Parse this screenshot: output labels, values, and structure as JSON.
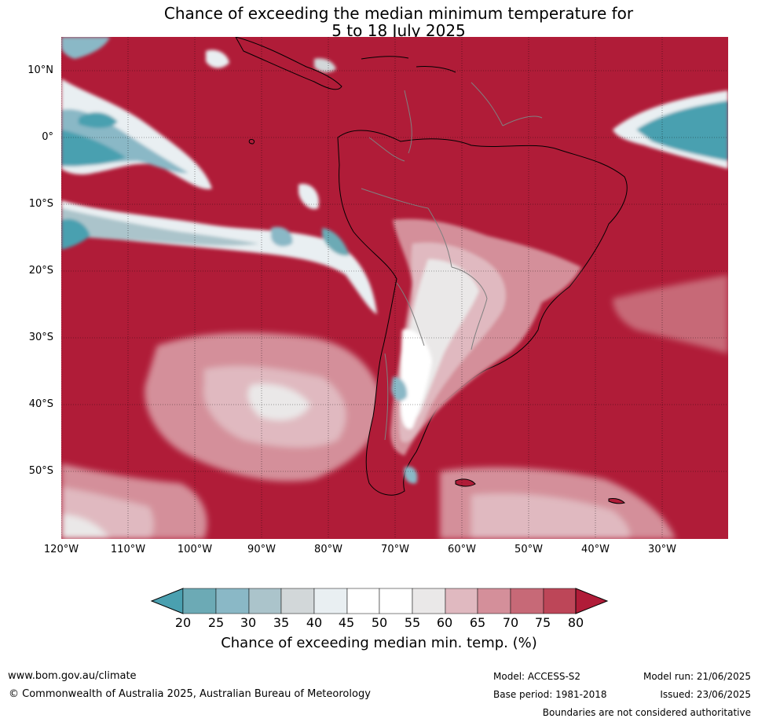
{
  "title_line1": "Chance of exceeding the median minimum temperature for",
  "title_line2": "5 to 18 July 2025",
  "map": {
    "lat_labels": [
      "10°N",
      "0°",
      "10°S",
      "20°S",
      "30°S",
      "40°S",
      "50°S"
    ],
    "lon_labels": [
      "120°W",
      "110°W",
      "100°W",
      "90°W",
      "80°W",
      "70°W",
      "60°W",
      "50°W",
      "40°W",
      "30°W"
    ],
    "region": "South America",
    "dominant_category": "80",
    "colors": {
      "c20": "#4aa0b0",
      "c25": "#6caab5",
      "c30": "#8ab8c6",
      "c35": "#abc4cb",
      "c40": "#d2d7d9",
      "c45": "#e9eff2",
      "c50": "#ffffff",
      "c55": "#ffffff",
      "c60": "#eae8e8",
      "c65": "#e0b9c0",
      "c70": "#d48f9a",
      "c75": "#c76977",
      "c80": "#bd4658",
      "c80plus": "#b01c38",
      "land_outline": "#000000",
      "border": "#808080"
    }
  },
  "colorbar": {
    "ticks": [
      "20",
      "25",
      "30",
      "35",
      "40",
      "45",
      "50",
      "55",
      "60",
      "65",
      "70",
      "75",
      "80"
    ],
    "label": "Chance of exceeding median min. temp. (%)"
  },
  "footer": {
    "website": "www.bom.gov.au/climate",
    "copyright": "© Commonwealth of Australia 2025, Australian Bureau of Meteorology",
    "model": "Model: ACCESS-S2",
    "base_period": "Base period: 1981-2018",
    "model_run": "Model run: 21/06/2025",
    "issued": "Issued: 23/06/2025",
    "disclaimer": "Boundaries are not considered authoritative"
  }
}
